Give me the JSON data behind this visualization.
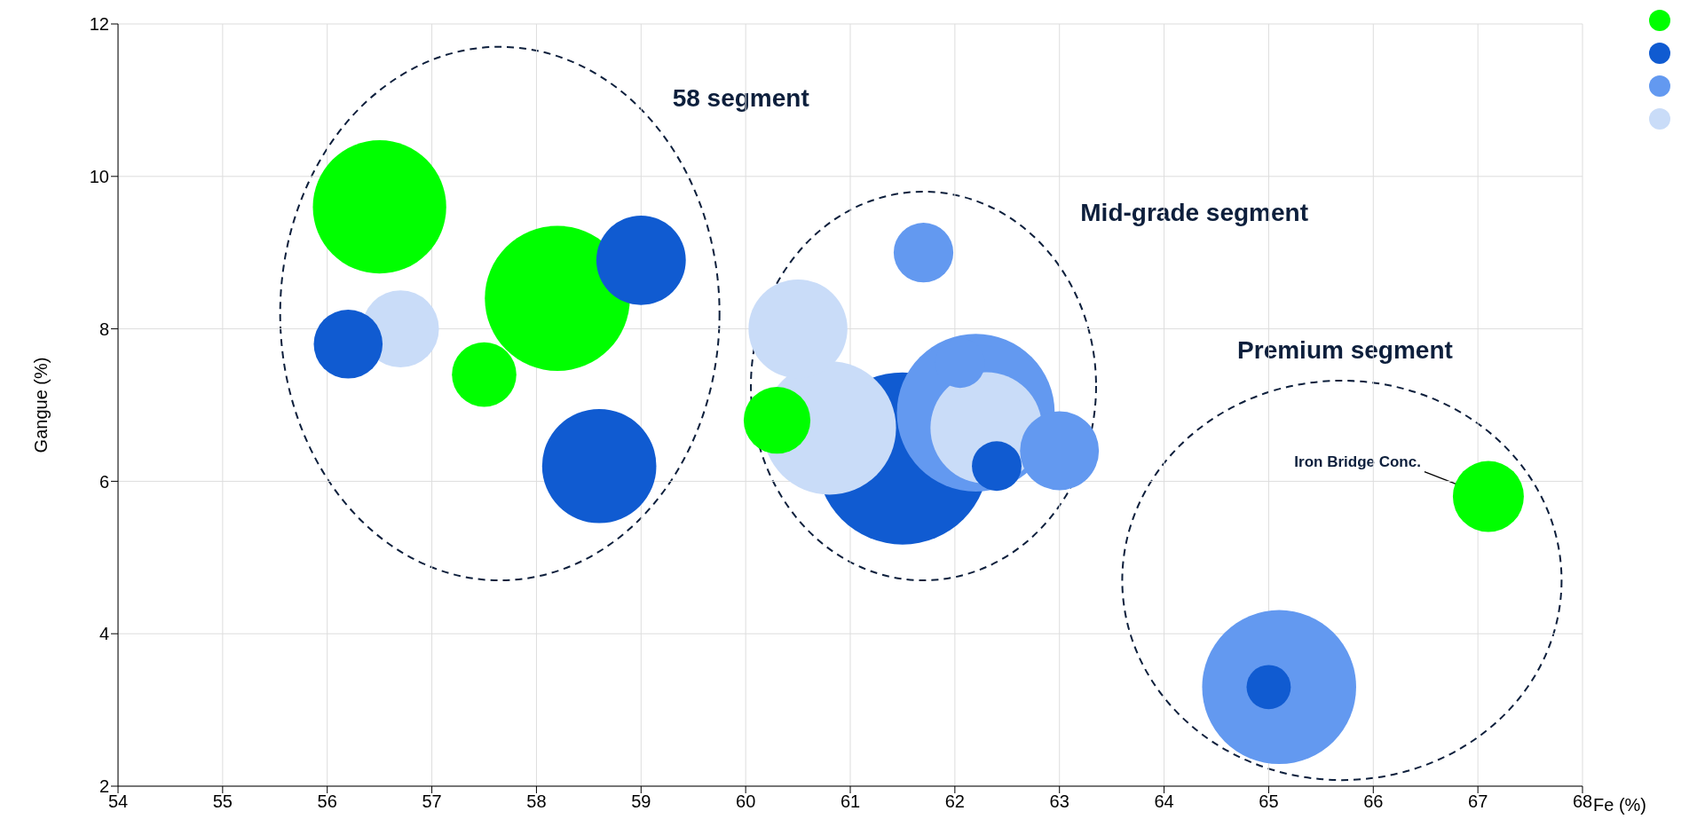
{
  "chart_data": {
    "type": "bubble",
    "xlabel": "Fe (%)",
    "ylabel": "Gangue (%)",
    "xlim": [
      54,
      68
    ],
    "xticks": [
      54,
      55,
      56,
      57,
      58,
      59,
      60,
      61,
      62,
      63,
      64,
      65,
      66,
      67,
      68
    ],
    "ylim": [
      2,
      12
    ],
    "yticks": [
      2,
      4,
      6,
      8,
      10,
      12
    ],
    "grid": true,
    "annotations": [
      "58 segment",
      "Mid-grade segment",
      "Premium segment",
      {
        "text": "Iron Bridge Conc.",
        "x": 67.1,
        "y": 5.8
      }
    ],
    "series": [
      {
        "color": "#00ff00",
        "x": [
          56.5,
          58.2,
          57.5,
          60.3,
          67.1
        ],
        "values": [
          9.6,
          8.4,
          7.4,
          6.8,
          5.8
        ],
        "sizes": [
          0.6,
          0.71,
          0.14,
          0.15,
          0.17
        ]
      },
      {
        "color": "#105bd1",
        "x": [
          56.2,
          59.0,
          58.6,
          61.5,
          62.4,
          65.0
        ],
        "values": [
          7.8,
          8.9,
          6.2,
          6.3,
          6.2,
          3.3
        ],
        "sizes": [
          0.16,
          0.27,
          0.44,
          1,
          0.083,
          0.066
        ]
      },
      {
        "color": "#6399f0",
        "x": [
          61.7,
          62.2,
          62.05,
          63.0,
          65.1
        ],
        "values": [
          9.0,
          6.9,
          7.55,
          6.4,
          3.3
        ],
        "sizes": [
          0.12,
          0.84,
          0.083,
          0.21,
          0.8
        ]
      },
      {
        "color": "#c9dcf8",
        "x": [
          56.7,
          60.5,
          60.8,
          62.3
        ],
        "values": [
          8.0,
          8.0,
          6.7,
          6.7
        ],
        "sizes": [
          0.2,
          0.33,
          0.6,
          0.42
        ]
      }
    ]
  }
}
